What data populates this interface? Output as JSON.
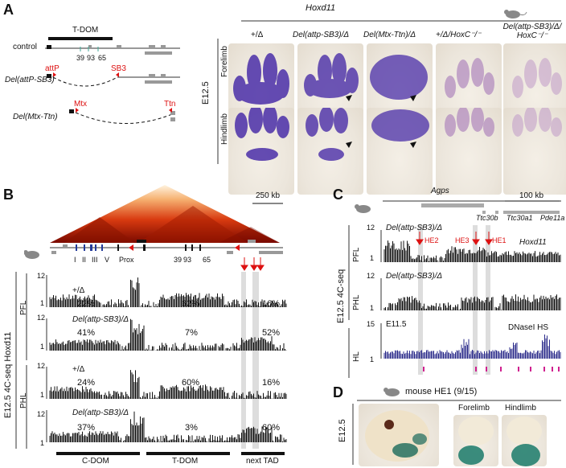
{
  "panel_letters": {
    "a": "A",
    "b": "B",
    "c": "C",
    "d": "D"
  },
  "panel_a": {
    "gene_header": "Hoxd11",
    "tdom_label": "T-DOM",
    "tracks": [
      {
        "label": "control",
        "marks": [
          "39",
          "93",
          "65"
        ]
      },
      {
        "label": "Del(attP-SB3)",
        "left_tag": "attP",
        "right_tag": "SB3"
      },
      {
        "label": "Del(Mtx-Ttn)",
        "left_tag": "Mtx",
        "right_tag": "Ttn"
      }
    ],
    "stage": "E12.5",
    "rows": [
      "Forelimb",
      "Hindlimb"
    ],
    "columns": [
      "+/Δ",
      "Del(attp-SB3)/Δ",
      "Del(Mtx-Ttn)/Δ",
      "+/Δ/HoxC⁻/⁻",
      "Del(attp-SB3)/Δ/ HoxC⁻/⁻"
    ]
  },
  "panel_b": {
    "scale": "250 kb",
    "axis_label": "E12.5 4C-seq Hoxd11",
    "genes_left": [
      "I",
      "II",
      "III",
      "V"
    ],
    "prox": "Prox",
    "marks": [
      "39",
      "93",
      "65"
    ],
    "tissue_labels": [
      "PFL",
      "PHL"
    ],
    "tracks": [
      {
        "genotype": "+/Δ",
        "ymax": "12",
        "ymin": "1",
        "cdom": "22%",
        "tdom": "62%",
        "next": "16%"
      },
      {
        "genotype": "Del(attp-SB3)/Δ",
        "ymax": "12",
        "ymin": "1",
        "cdom": "41%",
        "tdom": "7%",
        "next": "52%"
      },
      {
        "genotype": "+/Δ",
        "ymax": "12",
        "ymin": "1",
        "cdom": "24%",
        "tdom": "60%",
        "next": "16%"
      },
      {
        "genotype": "Del(attp-SB3)/Δ",
        "ymax": "12",
        "ymin": "1",
        "cdom": "37%",
        "tdom": "3%",
        "next": "60%"
      }
    ],
    "domains": [
      "C-DOM",
      "T-DOM",
      "next TAD"
    ]
  },
  "panel_c": {
    "genes": [
      "Agps",
      "Ttc30b",
      "Ttc30a1",
      "Pde11a"
    ],
    "scale": "100 kb",
    "axis_label": "E12.5 4C-seq",
    "tracks": [
      {
        "tissue": "PFL",
        "genotype": "Del(attp-SB3)/Δ",
        "bait": "Hoxd11",
        "ymax": "12",
        "ymin": "1"
      },
      {
        "tissue": "PHL",
        "genotype": "Del(attp-SB3)/Δ",
        "ymax": "12",
        "ymin": "1"
      },
      {
        "tissue": "HL",
        "genotype": "E11.5",
        "title": "DNaseI HS",
        "ymax": "15",
        "ymin": "1"
      }
    ],
    "enhancers": [
      "HE2",
      "HE3",
      "HE1"
    ]
  },
  "panel_d": {
    "title": "mouse HE1 (9/15)",
    "stage": "E12.5",
    "views": [
      "Forelimb",
      "Hindlimb"
    ]
  },
  "colors": {
    "stain": "#4a2ea8",
    "red": "#dd1111",
    "dnase": "#2a2a8a",
    "magenta": "#d0208f"
  }
}
